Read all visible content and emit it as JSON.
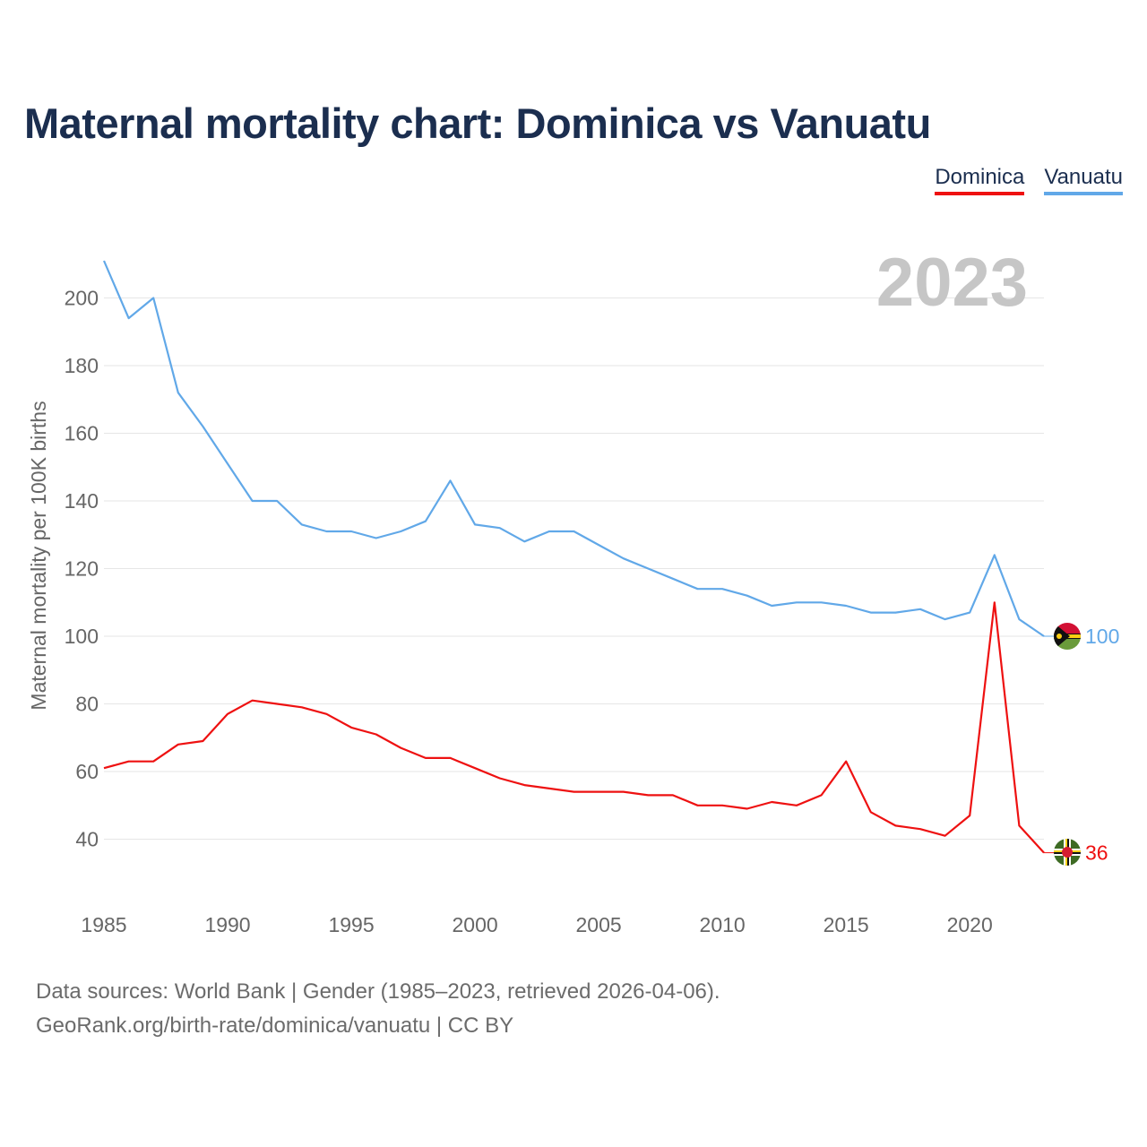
{
  "title": "Maternal mortality chart: Dominica vs Vanuatu",
  "legend": [
    {
      "label": "Dominica",
      "color": "#ee1111"
    },
    {
      "label": "Vanuatu",
      "color": "#61a8e8"
    }
  ],
  "footer": {
    "line1": "Data sources: World Bank | Gender (1985–2023, retrieved 2026-04-06).",
    "line2": "GeoRank.org/birth-rate/dominica/vanuatu | CC BY"
  },
  "chart_data": {
    "type": "line",
    "title": "Maternal mortality chart: Dominica vs Vanuatu",
    "year_label": "2023",
    "xlabel": "",
    "ylabel": "Maternal mortality per 100K births",
    "xlim": [
      1985,
      2023
    ],
    "ylim": [
      25,
      215
    ],
    "x_ticks": [
      1985,
      1990,
      1995,
      2000,
      2005,
      2010,
      2015,
      2020
    ],
    "y_ticks": [
      40,
      60,
      80,
      100,
      120,
      140,
      160,
      180,
      200
    ],
    "grid": true,
    "legend_position": "top-right",
    "x": [
      1985,
      1986,
      1987,
      1988,
      1989,
      1990,
      1991,
      1992,
      1993,
      1994,
      1995,
      1996,
      1997,
      1998,
      1999,
      2000,
      2001,
      2002,
      2003,
      2004,
      2005,
      2006,
      2007,
      2008,
      2009,
      2010,
      2011,
      2012,
      2013,
      2014,
      2015,
      2016,
      2017,
      2018,
      2019,
      2020,
      2021,
      2022,
      2023
    ],
    "series": [
      {
        "name": "Dominica",
        "color": "#ee1111",
        "end_label": "36",
        "flag": "dominica-flag-icon",
        "values": [
          61,
          63,
          63,
          68,
          69,
          77,
          81,
          80,
          79,
          77,
          73,
          71,
          67,
          64,
          64,
          61,
          58,
          56,
          55,
          54,
          54,
          54,
          53,
          53,
          50,
          50,
          49,
          51,
          50,
          53,
          63,
          48,
          44,
          43,
          41,
          47,
          110,
          44,
          36
        ]
      },
      {
        "name": "Vanuatu",
        "color": "#61a8e8",
        "end_label": "100",
        "flag": "vanuatu-flag-icon",
        "values": [
          211,
          194,
          200,
          172,
          162,
          151,
          140,
          140,
          133,
          131,
          131,
          129,
          131,
          134,
          146,
          133,
          132,
          128,
          131,
          131,
          127,
          123,
          120,
          117,
          114,
          114,
          112,
          109,
          110,
          110,
          109,
          107,
          107,
          108,
          105,
          107,
          124,
          105,
          100
        ]
      }
    ]
  }
}
